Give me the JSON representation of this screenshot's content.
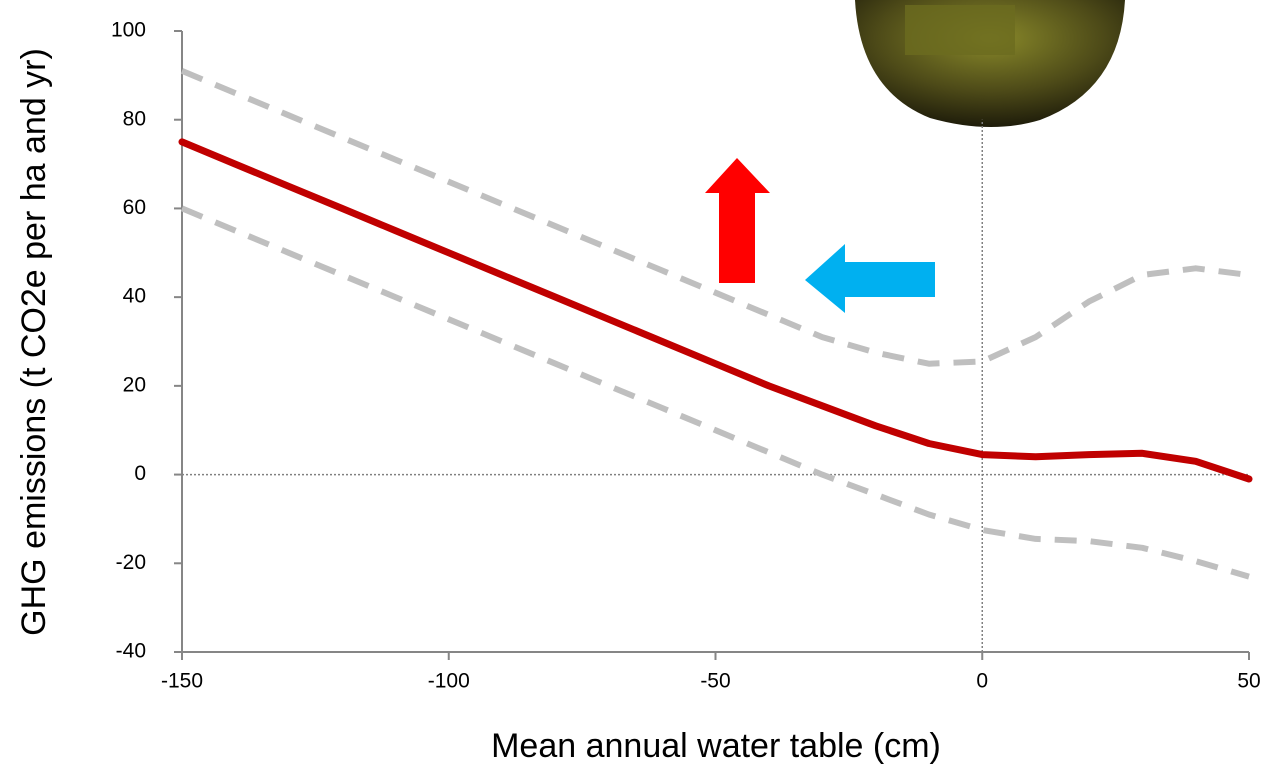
{
  "chart_data": {
    "type": "line",
    "x_label": "Mean annual water table (cm)",
    "y_label": "GHG emissions (t CO2e per ha and yr)",
    "x": [
      -150,
      -140,
      -130,
      -120,
      -110,
      -100,
      -90,
      -80,
      -70,
      -60,
      -50,
      -40,
      -30,
      -20,
      -10,
      0,
      10,
      20,
      30,
      40,
      50
    ],
    "series": [
      {
        "color": "#c00000",
        "style": "solid",
        "values": [
          75,
          70,
          65,
          60,
          55,
          50,
          45,
          40,
          35,
          30,
          25,
          20,
          15.5,
          11,
          7,
          4.5,
          4,
          4.5,
          4.8,
          3,
          -1
        ]
      },
      {
        "color": "#bfbfbf",
        "style": "dashed",
        "values": [
          91,
          86,
          81,
          76,
          71,
          66,
          61,
          56,
          51,
          46,
          41,
          36,
          31,
          27.5,
          25,
          25.5,
          31,
          39,
          45,
          46.5,
          45
        ]
      },
      {
        "color": "#bfbfbf",
        "style": "dashed",
        "values": [
          60,
          55,
          50,
          45,
          40,
          35,
          30,
          25,
          20,
          15,
          10,
          5,
          0,
          -4.5,
          -9,
          -12.5,
          -14.5,
          -15,
          -16.5,
          -19.5,
          -23
        ]
      }
    ],
    "xlim": [
      -150,
      50
    ],
    "xticks": [
      -150,
      -100,
      -50,
      0,
      50
    ],
    "ylim": [
      -40,
      100
    ],
    "yticks": [
      -40,
      -20,
      0,
      20,
      40,
      60,
      80,
      100
    ]
  }
}
